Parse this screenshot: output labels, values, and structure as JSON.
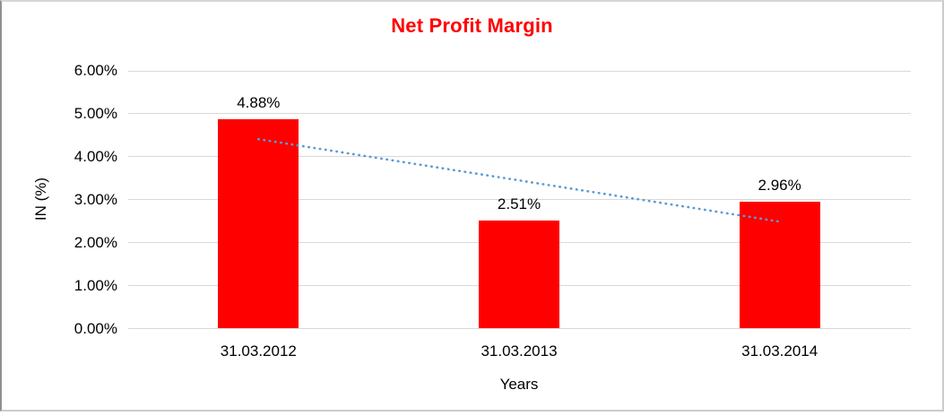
{
  "chart_data": {
    "type": "bar",
    "title": "Net Profit Margin",
    "title_color": "#ff0000",
    "xlabel": "Years",
    "ylabel": "IN (%)",
    "categories": [
      "31.03.2012",
      "31.03.2013",
      "31.03.2014"
    ],
    "values": [
      4.88,
      2.51,
      2.96
    ],
    "data_labels": [
      "4.88%",
      "2.51%",
      "2.96%"
    ],
    "bar_color": "#ff0000",
    "ylim": [
      0,
      6
    ],
    "ytick_values": [
      0,
      1,
      2,
      3,
      4,
      5,
      6
    ],
    "ytick_labels": [
      "0.00%",
      "1.00%",
      "2.00%",
      "3.00%",
      "4.00%",
      "5.00%",
      "6.00%"
    ],
    "grid": true,
    "gridline_color": "#d9d9d9",
    "legend_position": "none",
    "trendline": {
      "type": "linear",
      "style": "dotted",
      "color": "#5b9bd5",
      "values": [
        4.41,
        3.45,
        2.49
      ]
    }
  }
}
